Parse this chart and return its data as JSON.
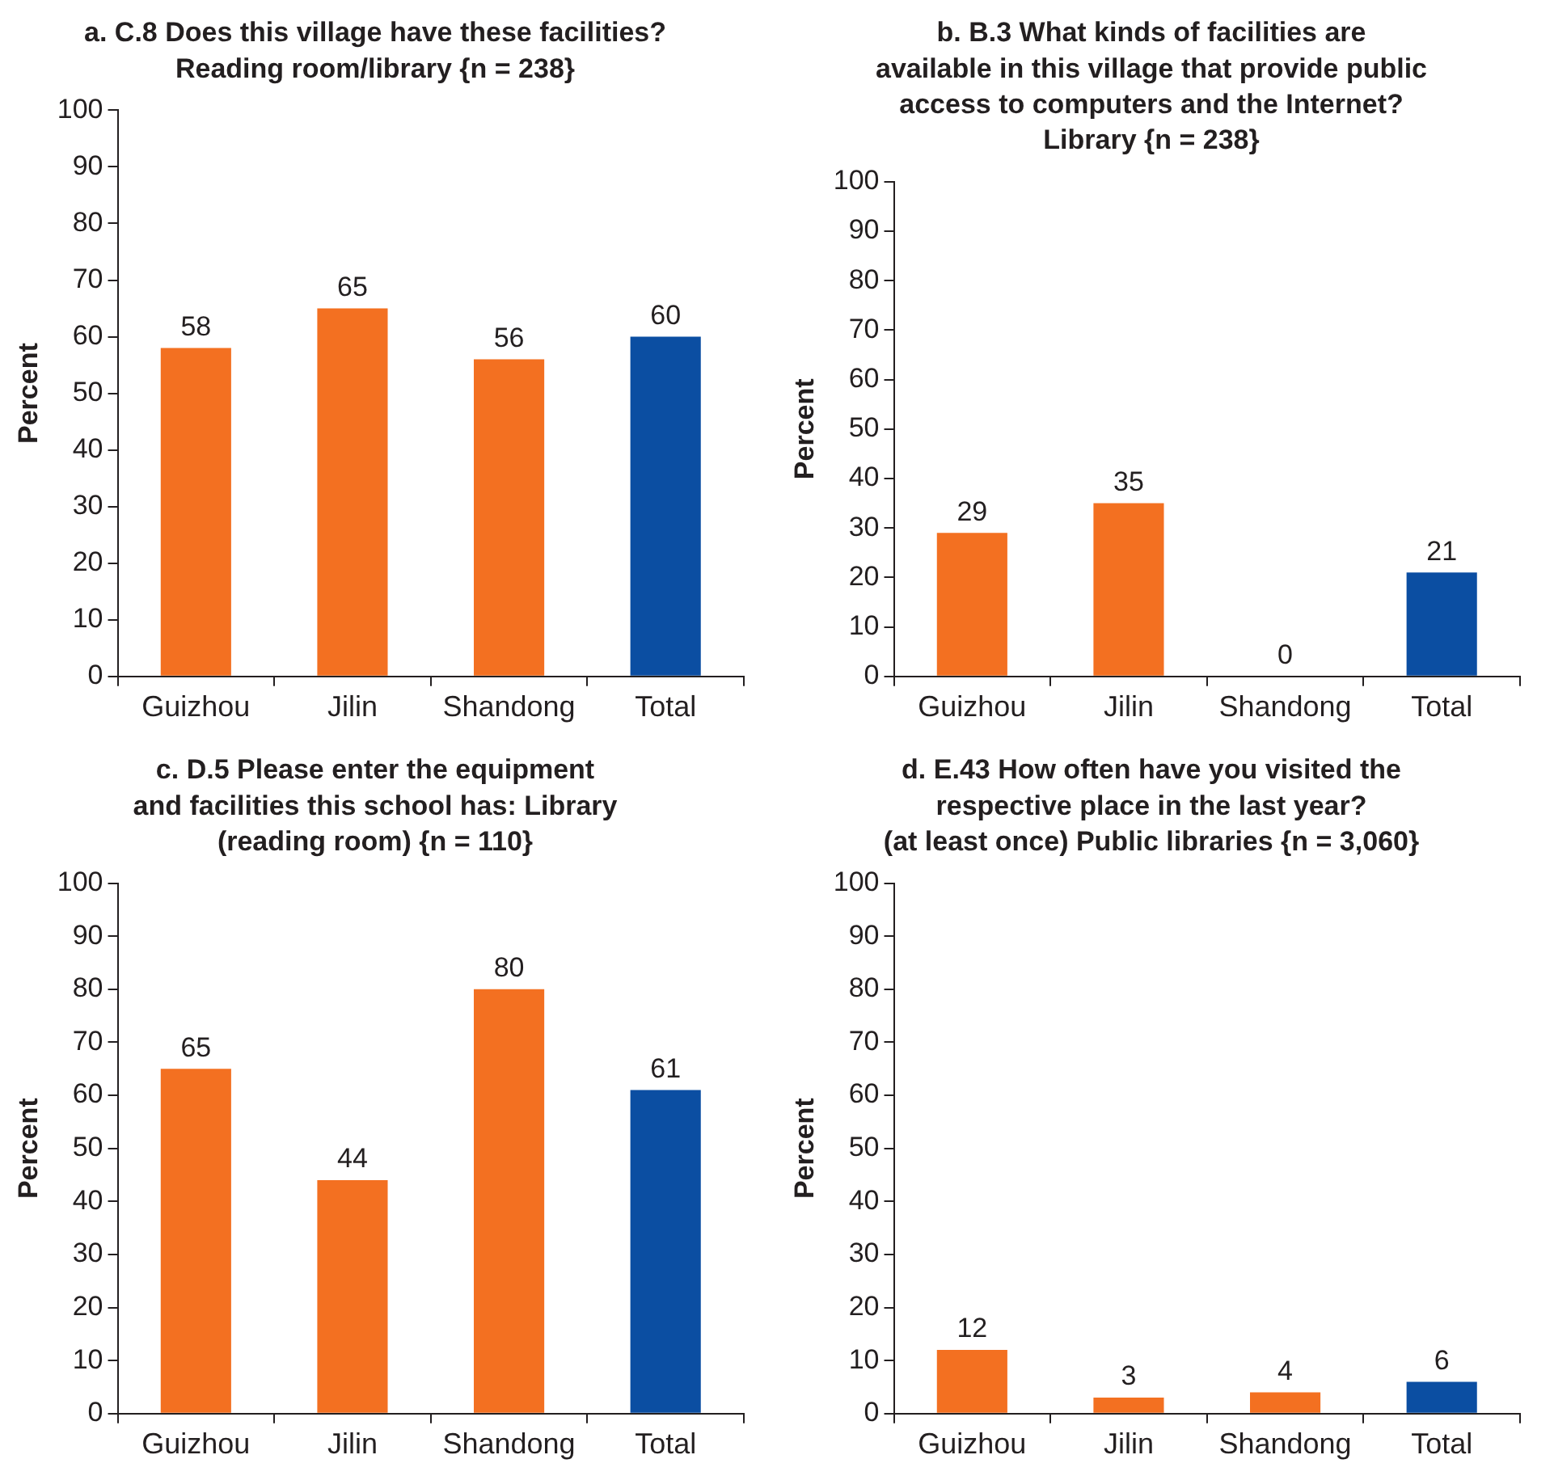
{
  "chart_data": [
    {
      "type": "bar",
      "title": "a. C.8 Does this village have these facilities?\nReading room/library {n = 238}",
      "categories": [
        "Guizhou",
        "Jilin",
        "Shandong",
        "Total"
      ],
      "values": [
        58,
        65,
        56,
        60
      ],
      "colors": [
        "#f37021",
        "#f37021",
        "#f37021",
        "#0b4ea2"
      ],
      "ylabel": "Percent",
      "ylim": [
        0,
        100
      ],
      "yticks": [
        0,
        10,
        20,
        30,
        40,
        50,
        60,
        70,
        80,
        90,
        100
      ],
      "data_labels": true,
      "grid": false
    },
    {
      "type": "bar",
      "title": "b. B.3 What kinds of facilities are\navailable in this village that provide public\naccess to computers and the Internet?\nLibrary {n = 238}",
      "categories": [
        "Guizhou",
        "Jilin",
        "Shandong",
        "Total"
      ],
      "values": [
        29,
        35,
        0,
        21
      ],
      "colors": [
        "#f37021",
        "#f37021",
        "#f37021",
        "#0b4ea2"
      ],
      "ylabel": "Percent",
      "ylim": [
        0,
        100
      ],
      "yticks": [
        0,
        10,
        20,
        30,
        40,
        50,
        60,
        70,
        80,
        90,
        100
      ],
      "data_labels": true,
      "grid": false
    },
    {
      "type": "bar",
      "title": "c. D.5 Please enter the equipment\nand facilities this school has: Library\n(reading room) {n = 110}",
      "categories": [
        "Guizhou",
        "Jilin",
        "Shandong",
        "Total"
      ],
      "values": [
        65,
        44,
        80,
        61
      ],
      "colors": [
        "#f37021",
        "#f37021",
        "#f37021",
        "#0b4ea2"
      ],
      "ylabel": "Percent",
      "ylim": [
        0,
        100
      ],
      "yticks": [
        0,
        10,
        20,
        30,
        40,
        50,
        60,
        70,
        80,
        90,
        100
      ],
      "data_labels": true,
      "grid": false
    },
    {
      "type": "bar",
      "title": "d. E.43 How often have you visited the\nrespective place in the last year?\n(at least once) Public libraries {n = 3,060}",
      "categories": [
        "Guizhou",
        "Jilin",
        "Shandong",
        "Total"
      ],
      "values": [
        12,
        3,
        4,
        6
      ],
      "colors": [
        "#f37021",
        "#f37021",
        "#f37021",
        "#0b4ea2"
      ],
      "ylabel": "Percent",
      "ylim": [
        0,
        100
      ],
      "yticks": [
        0,
        10,
        20,
        30,
        40,
        50,
        60,
        70,
        80,
        90,
        100
      ],
      "data_labels": true,
      "grid": false
    }
  ]
}
